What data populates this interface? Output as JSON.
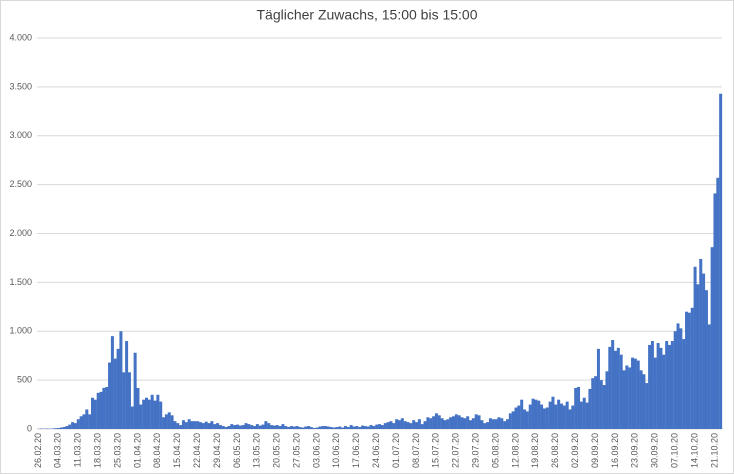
{
  "chart_data": {
    "type": "bar",
    "title": "Täglicher Zuwachs, 15:00 bis 15:00",
    "color": "#4472c4",
    "grid": true,
    "ylim": [
      0,
      4000
    ],
    "yticks": [
      0,
      500,
      {
        "value": 1000,
        "label": "1.000"
      },
      {
        "value": 1500,
        "label": "1.500"
      },
      {
        "value": 2000,
        "label": "2.000"
      },
      {
        "value": 2500,
        "label": "2.500"
      },
      {
        "value": 3000,
        "label": "3.000"
      },
      {
        "value": 3500,
        "label": "3.500"
      },
      {
        "value": 4000,
        "label": "4.000"
      }
    ],
    "categories": [
      "26.02.20",
      null,
      null,
      null,
      null,
      null,
      null,
      "04.03.20",
      null,
      null,
      null,
      null,
      null,
      null,
      "11.03.20",
      null,
      null,
      null,
      null,
      null,
      null,
      "18.03.20",
      null,
      null,
      null,
      null,
      null,
      null,
      "25.03.20",
      null,
      null,
      null,
      null,
      null,
      null,
      "01.04.20",
      null,
      null,
      null,
      null,
      null,
      null,
      "08.04.20",
      null,
      null,
      null,
      null,
      null,
      null,
      "15.04.20",
      null,
      null,
      null,
      null,
      null,
      null,
      "22.04.20",
      null,
      null,
      null,
      null,
      null,
      null,
      "29.04.20",
      null,
      null,
      null,
      null,
      null,
      null,
      "06.05.20",
      null,
      null,
      null,
      null,
      null,
      null,
      "13.05.20",
      null,
      null,
      null,
      null,
      null,
      null,
      "20.05.20",
      null,
      null,
      null,
      null,
      null,
      null,
      "27.05.20",
      null,
      null,
      null,
      null,
      null,
      null,
      "03.06.20",
      null,
      null,
      null,
      null,
      null,
      null,
      "10.06.20",
      null,
      null,
      null,
      null,
      null,
      null,
      "17.06.20",
      null,
      null,
      null,
      null,
      null,
      null,
      "24.06.20",
      null,
      null,
      null,
      null,
      null,
      null,
      "01.07.20",
      null,
      null,
      null,
      null,
      null,
      null,
      "08.07.20",
      null,
      null,
      null,
      null,
      null,
      null,
      "15.07.20",
      null,
      null,
      null,
      null,
      null,
      null,
      "22.07.20",
      null,
      null,
      null,
      null,
      null,
      null,
      "29.07.20",
      null,
      null,
      null,
      null,
      null,
      null,
      "05.08.20",
      null,
      null,
      null,
      null,
      null,
      null,
      "12.08.20",
      null,
      null,
      null,
      null,
      null,
      null,
      "19.08.20",
      null,
      null,
      null,
      null,
      null,
      null,
      "26.08.20",
      null,
      null,
      null,
      null,
      null,
      null,
      "02.09.20",
      null,
      null,
      null,
      null,
      null,
      null,
      "09.09.20",
      null,
      null,
      null,
      null,
      null,
      null,
      "16.09.20",
      null,
      null,
      null,
      null,
      null,
      null,
      "23.09.20",
      null,
      null,
      null,
      null,
      null,
      null,
      "30.09.20",
      null,
      null,
      null,
      null,
      null,
      null,
      "07.10.20",
      null,
      null,
      null,
      null,
      null,
      null,
      "14.10.20",
      null,
      null,
      null,
      null,
      null,
      null,
      "21.10.20",
      null,
      null
    ],
    "values": [
      2,
      5,
      3,
      5,
      3,
      5,
      8,
      10,
      15,
      20,
      30,
      45,
      70,
      60,
      100,
      130,
      150,
      200,
      150,
      320,
      300,
      370,
      380,
      420,
      430,
      680,
      950,
      720,
      820,
      1000,
      580,
      900,
      580,
      230,
      780,
      420,
      250,
      300,
      320,
      300,
      350,
      290,
      350,
      280,
      120,
      150,
      170,
      140,
      80,
      60,
      40,
      90,
      70,
      100,
      80,
      80,
      80,
      70,
      60,
      75,
      60,
      80,
      50,
      60,
      40,
      30,
      20,
      30,
      50,
      40,
      45,
      35,
      40,
      60,
      50,
      40,
      30,
      50,
      35,
      45,
      80,
      60,
      40,
      35,
      40,
      30,
      50,
      30,
      20,
      30,
      25,
      30,
      20,
      15,
      25,
      30,
      20,
      10,
      15,
      25,
      30,
      30,
      25,
      20,
      15,
      20,
      25,
      15,
      30,
      20,
      40,
      25,
      30,
      20,
      35,
      30,
      25,
      40,
      30,
      45,
      50,
      40,
      60,
      70,
      80,
      60,
      100,
      90,
      110,
      80,
      70,
      60,
      90,
      70,
      100,
      50,
      80,
      120,
      110,
      130,
      160,
      140,
      110,
      90,
      100,
      120,
      130,
      150,
      140,
      120,
      110,
      130,
      90,
      110,
      150,
      140,
      90,
      60,
      70,
      110,
      100,
      100,
      120,
      110,
      80,
      100,
      160,
      180,
      220,
      240,
      300,
      200,
      180,
      250,
      310,
      300,
      290,
      250,
      210,
      220,
      280,
      330,
      250,
      300,
      260,
      240,
      280,
      200,
      240,
      420,
      430,
      280,
      320,
      270,
      410,
      520,
      540,
      820,
      500,
      450,
      590,
      840,
      910,
      800,
      830,
      760,
      600,
      650,
      630,
      730,
      720,
      700,
      600,
      560,
      470,
      860,
      900,
      730,
      880,
      830,
      760,
      900,
      860,
      900,
      1000,
      1080,
      1030,
      920,
      1200,
      1190,
      1240,
      1660,
      1480,
      1740,
      1590,
      1420,
      1070,
      1860,
      2410,
      2570,
      3430
    ]
  }
}
